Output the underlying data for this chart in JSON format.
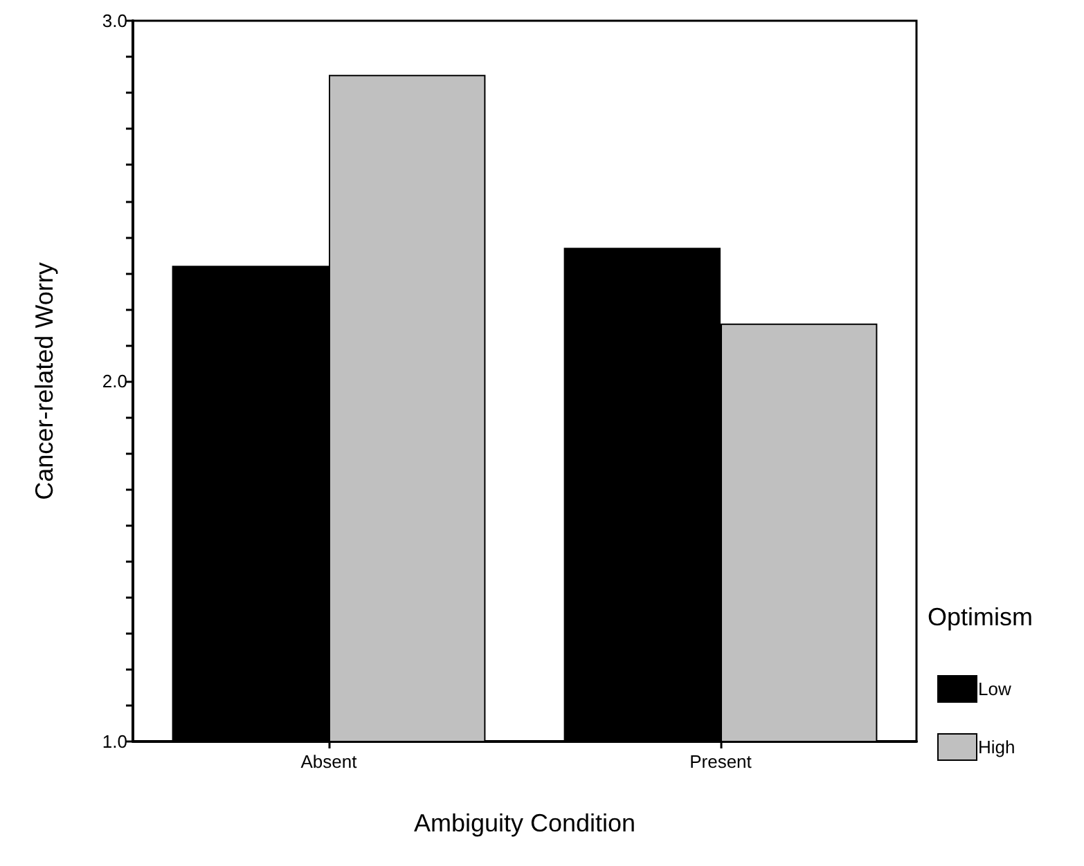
{
  "chart_data": {
    "type": "bar",
    "xlabel": "Ambiguity Condition",
    "ylabel": "Cancer-related Worry",
    "legend_title": "Optimism",
    "legend": "right",
    "grid": false,
    "categories": [
      "Absent",
      "Present"
    ],
    "series": [
      {
        "name": "Low",
        "color": "#000000",
        "values": [
          2.32,
          2.37
        ]
      },
      {
        "name": "High",
        "color": "#c0c0c0",
        "values": [
          2.85,
          2.16
        ]
      }
    ],
    "ylim": [
      1,
      3
    ],
    "yticks": [
      {
        "value": 1,
        "label": "1.0"
      },
      {
        "value": 1.1,
        "label": null
      },
      {
        "value": 1.2,
        "label": null
      },
      {
        "value": 1.3,
        "label": null
      },
      {
        "value": 1.4,
        "label": null
      },
      {
        "value": 1.5,
        "label": null
      },
      {
        "value": 1.6,
        "label": null
      },
      {
        "value": 1.7,
        "label": null
      },
      {
        "value": 1.8,
        "label": null
      },
      {
        "value": 1.9,
        "label": null
      },
      {
        "value": 2,
        "label": "2.0"
      },
      {
        "value": 2.1,
        "label": null
      },
      {
        "value": 2.2,
        "label": null
      },
      {
        "value": 2.3,
        "label": null
      },
      {
        "value": 2.4,
        "label": null
      },
      {
        "value": 2.5,
        "label": null
      },
      {
        "value": 2.6,
        "label": null
      },
      {
        "value": 2.7,
        "label": null
      },
      {
        "value": 2.8,
        "label": null
      },
      {
        "value": 2.9,
        "label": null
      },
      {
        "value": 3,
        "label": "3.0"
      }
    ]
  }
}
